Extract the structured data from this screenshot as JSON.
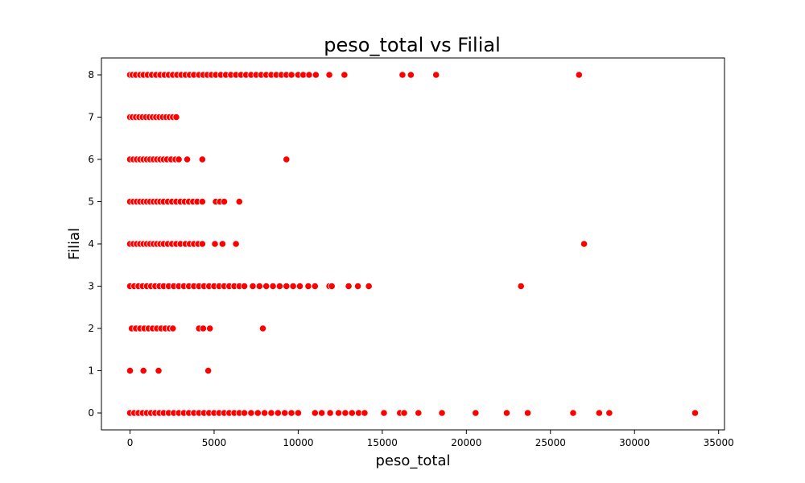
{
  "chart_data": {
    "type": "scatter",
    "title": "peso_total vs Filial",
    "xlabel": "peso_total",
    "ylabel": "Filial",
    "xlim": [
      -1700,
      35350
    ],
    "ylim": [
      -0.4,
      8.4
    ],
    "xticks": [
      0,
      5000,
      10000,
      15000,
      20000,
      25000,
      30000,
      35000
    ],
    "yticks": [
      0,
      1,
      2,
      3,
      4,
      5,
      6,
      7,
      8
    ],
    "grid": false,
    "legend": "none",
    "marker_color": "#ff0000",
    "marker_edge_color": "#ffffff",
    "points": [
      {
        "x": 0,
        "y": 8
      },
      {
        "x": 150,
        "y": 8
      },
      {
        "x": 350,
        "y": 8
      },
      {
        "x": 600,
        "y": 8
      },
      {
        "x": 800,
        "y": 8
      },
      {
        "x": 1050,
        "y": 8
      },
      {
        "x": 1300,
        "y": 8
      },
      {
        "x": 1550,
        "y": 8
      },
      {
        "x": 1800,
        "y": 8
      },
      {
        "x": 2050,
        "y": 8
      },
      {
        "x": 2300,
        "y": 8
      },
      {
        "x": 2550,
        "y": 8
      },
      {
        "x": 2800,
        "y": 8
      },
      {
        "x": 3050,
        "y": 8
      },
      {
        "x": 3300,
        "y": 8
      },
      {
        "x": 3550,
        "y": 8
      },
      {
        "x": 3800,
        "y": 8
      },
      {
        "x": 4100,
        "y": 8
      },
      {
        "x": 4350,
        "y": 8
      },
      {
        "x": 4600,
        "y": 8
      },
      {
        "x": 4850,
        "y": 8
      },
      {
        "x": 5100,
        "y": 8
      },
      {
        "x": 5400,
        "y": 8
      },
      {
        "x": 5700,
        "y": 8
      },
      {
        "x": 6000,
        "y": 8
      },
      {
        "x": 6300,
        "y": 8
      },
      {
        "x": 6600,
        "y": 8
      },
      {
        "x": 6900,
        "y": 8
      },
      {
        "x": 7200,
        "y": 8
      },
      {
        "x": 7500,
        "y": 8
      },
      {
        "x": 7800,
        "y": 8
      },
      {
        "x": 8100,
        "y": 8
      },
      {
        "x": 8400,
        "y": 8
      },
      {
        "x": 8700,
        "y": 8
      },
      {
        "x": 9000,
        "y": 8
      },
      {
        "x": 9300,
        "y": 8
      },
      {
        "x": 9600,
        "y": 8
      },
      {
        "x": 10000,
        "y": 8
      },
      {
        "x": 10300,
        "y": 8
      },
      {
        "x": 10650,
        "y": 8
      },
      {
        "x": 11050,
        "y": 8
      },
      {
        "x": 11850,
        "y": 8
      },
      {
        "x": 12750,
        "y": 8
      },
      {
        "x": 16200,
        "y": 8
      },
      {
        "x": 16700,
        "y": 8
      },
      {
        "x": 18200,
        "y": 8
      },
      {
        "x": 26700,
        "y": 8
      },
      {
        "x": 0,
        "y": 7
      },
      {
        "x": 150,
        "y": 7
      },
      {
        "x": 350,
        "y": 7
      },
      {
        "x": 550,
        "y": 7
      },
      {
        "x": 750,
        "y": 7
      },
      {
        "x": 950,
        "y": 7
      },
      {
        "x": 1150,
        "y": 7
      },
      {
        "x": 1350,
        "y": 7
      },
      {
        "x": 1550,
        "y": 7
      },
      {
        "x": 1750,
        "y": 7
      },
      {
        "x": 1950,
        "y": 7
      },
      {
        "x": 2150,
        "y": 7
      },
      {
        "x": 2350,
        "y": 7
      },
      {
        "x": 2550,
        "y": 7
      },
      {
        "x": 2750,
        "y": 7
      },
      {
        "x": 0,
        "y": 6
      },
      {
        "x": 200,
        "y": 6
      },
      {
        "x": 400,
        "y": 6
      },
      {
        "x": 600,
        "y": 6
      },
      {
        "x": 800,
        "y": 6
      },
      {
        "x": 1000,
        "y": 6
      },
      {
        "x": 1200,
        "y": 6
      },
      {
        "x": 1400,
        "y": 6
      },
      {
        "x": 1600,
        "y": 6
      },
      {
        "x": 1800,
        "y": 6
      },
      {
        "x": 2000,
        "y": 6
      },
      {
        "x": 2200,
        "y": 6
      },
      {
        "x": 2450,
        "y": 6
      },
      {
        "x": 2700,
        "y": 6
      },
      {
        "x": 2900,
        "y": 6
      },
      {
        "x": 3400,
        "y": 6
      },
      {
        "x": 4300,
        "y": 6
      },
      {
        "x": 9300,
        "y": 6
      },
      {
        "x": 0,
        "y": 5
      },
      {
        "x": 200,
        "y": 5
      },
      {
        "x": 400,
        "y": 5
      },
      {
        "x": 600,
        "y": 5
      },
      {
        "x": 800,
        "y": 5
      },
      {
        "x": 1000,
        "y": 5
      },
      {
        "x": 1200,
        "y": 5
      },
      {
        "x": 1400,
        "y": 5
      },
      {
        "x": 1600,
        "y": 5
      },
      {
        "x": 1800,
        "y": 5
      },
      {
        "x": 2000,
        "y": 5
      },
      {
        "x": 2250,
        "y": 5
      },
      {
        "x": 2500,
        "y": 5
      },
      {
        "x": 2750,
        "y": 5
      },
      {
        "x": 3000,
        "y": 5
      },
      {
        "x": 3250,
        "y": 5
      },
      {
        "x": 3500,
        "y": 5
      },
      {
        "x": 3750,
        "y": 5
      },
      {
        "x": 4000,
        "y": 5
      },
      {
        "x": 4300,
        "y": 5
      },
      {
        "x": 5100,
        "y": 5
      },
      {
        "x": 5350,
        "y": 5
      },
      {
        "x": 5600,
        "y": 5
      },
      {
        "x": 6500,
        "y": 5
      },
      {
        "x": 0,
        "y": 4
      },
      {
        "x": 200,
        "y": 4
      },
      {
        "x": 400,
        "y": 4
      },
      {
        "x": 600,
        "y": 4
      },
      {
        "x": 800,
        "y": 4
      },
      {
        "x": 1000,
        "y": 4
      },
      {
        "x": 1200,
        "y": 4
      },
      {
        "x": 1400,
        "y": 4
      },
      {
        "x": 1600,
        "y": 4
      },
      {
        "x": 1800,
        "y": 4
      },
      {
        "x": 2000,
        "y": 4
      },
      {
        "x": 2250,
        "y": 4
      },
      {
        "x": 2500,
        "y": 4
      },
      {
        "x": 2750,
        "y": 4
      },
      {
        "x": 3000,
        "y": 4
      },
      {
        "x": 3300,
        "y": 4
      },
      {
        "x": 3550,
        "y": 4
      },
      {
        "x": 3800,
        "y": 4
      },
      {
        "x": 4050,
        "y": 4
      },
      {
        "x": 4300,
        "y": 4
      },
      {
        "x": 5050,
        "y": 4
      },
      {
        "x": 5500,
        "y": 4
      },
      {
        "x": 6300,
        "y": 4
      },
      {
        "x": 27000,
        "y": 4
      },
      {
        "x": 0,
        "y": 3
      },
      {
        "x": 250,
        "y": 3
      },
      {
        "x": 500,
        "y": 3
      },
      {
        "x": 750,
        "y": 3
      },
      {
        "x": 1000,
        "y": 3
      },
      {
        "x": 1250,
        "y": 3
      },
      {
        "x": 1500,
        "y": 3
      },
      {
        "x": 1750,
        "y": 3
      },
      {
        "x": 2000,
        "y": 3
      },
      {
        "x": 2300,
        "y": 3
      },
      {
        "x": 2600,
        "y": 3
      },
      {
        "x": 2900,
        "y": 3
      },
      {
        "x": 3200,
        "y": 3
      },
      {
        "x": 3500,
        "y": 3
      },
      {
        "x": 3800,
        "y": 3
      },
      {
        "x": 4100,
        "y": 3
      },
      {
        "x": 4400,
        "y": 3
      },
      {
        "x": 4700,
        "y": 3
      },
      {
        "x": 5000,
        "y": 3
      },
      {
        "x": 5300,
        "y": 3
      },
      {
        "x": 5600,
        "y": 3
      },
      {
        "x": 5900,
        "y": 3
      },
      {
        "x": 6200,
        "y": 3
      },
      {
        "x": 6500,
        "y": 3
      },
      {
        "x": 6800,
        "y": 3
      },
      {
        "x": 7300,
        "y": 3
      },
      {
        "x": 7700,
        "y": 3
      },
      {
        "x": 8100,
        "y": 3
      },
      {
        "x": 8500,
        "y": 3
      },
      {
        "x": 8900,
        "y": 3
      },
      {
        "x": 9300,
        "y": 3
      },
      {
        "x": 9700,
        "y": 3
      },
      {
        "x": 10100,
        "y": 3
      },
      {
        "x": 10600,
        "y": 3
      },
      {
        "x": 11000,
        "y": 3
      },
      {
        "x": 11850,
        "y": 3
      },
      {
        "x": 12000,
        "y": 3
      },
      {
        "x": 13000,
        "y": 3
      },
      {
        "x": 13550,
        "y": 3
      },
      {
        "x": 14200,
        "y": 3
      },
      {
        "x": 23250,
        "y": 3
      },
      {
        "x": 100,
        "y": 2
      },
      {
        "x": 350,
        "y": 2
      },
      {
        "x": 600,
        "y": 2
      },
      {
        "x": 850,
        "y": 2
      },
      {
        "x": 1100,
        "y": 2
      },
      {
        "x": 1350,
        "y": 2
      },
      {
        "x": 1600,
        "y": 2
      },
      {
        "x": 1850,
        "y": 2
      },
      {
        "x": 2100,
        "y": 2
      },
      {
        "x": 2350,
        "y": 2
      },
      {
        "x": 2550,
        "y": 2
      },
      {
        "x": 4100,
        "y": 2
      },
      {
        "x": 4350,
        "y": 2
      },
      {
        "x": 4750,
        "y": 2
      },
      {
        "x": 7900,
        "y": 2
      },
      {
        "x": 0,
        "y": 1
      },
      {
        "x": 800,
        "y": 1
      },
      {
        "x": 1700,
        "y": 1
      },
      {
        "x": 4650,
        "y": 1
      },
      {
        "x": 0,
        "y": 0
      },
      {
        "x": 250,
        "y": 0
      },
      {
        "x": 500,
        "y": 0
      },
      {
        "x": 750,
        "y": 0
      },
      {
        "x": 1000,
        "y": 0
      },
      {
        "x": 1250,
        "y": 0
      },
      {
        "x": 1500,
        "y": 0
      },
      {
        "x": 1750,
        "y": 0
      },
      {
        "x": 2000,
        "y": 0
      },
      {
        "x": 2300,
        "y": 0
      },
      {
        "x": 2600,
        "y": 0
      },
      {
        "x": 2900,
        "y": 0
      },
      {
        "x": 3200,
        "y": 0
      },
      {
        "x": 3500,
        "y": 0
      },
      {
        "x": 3800,
        "y": 0
      },
      {
        "x": 4100,
        "y": 0
      },
      {
        "x": 4400,
        "y": 0
      },
      {
        "x": 4700,
        "y": 0
      },
      {
        "x": 5000,
        "y": 0
      },
      {
        "x": 5300,
        "y": 0
      },
      {
        "x": 5600,
        "y": 0
      },
      {
        "x": 5900,
        "y": 0
      },
      {
        "x": 6200,
        "y": 0
      },
      {
        "x": 6500,
        "y": 0
      },
      {
        "x": 6800,
        "y": 0
      },
      {
        "x": 7200,
        "y": 0
      },
      {
        "x": 7600,
        "y": 0
      },
      {
        "x": 8000,
        "y": 0
      },
      {
        "x": 8400,
        "y": 0
      },
      {
        "x": 8800,
        "y": 0
      },
      {
        "x": 9200,
        "y": 0
      },
      {
        "x": 9600,
        "y": 0
      },
      {
        "x": 10000,
        "y": 0
      },
      {
        "x": 11000,
        "y": 0
      },
      {
        "x": 11400,
        "y": 0
      },
      {
        "x": 11900,
        "y": 0
      },
      {
        "x": 12400,
        "y": 0
      },
      {
        "x": 12800,
        "y": 0
      },
      {
        "x": 13200,
        "y": 0
      },
      {
        "x": 13600,
        "y": 0
      },
      {
        "x": 13950,
        "y": 0
      },
      {
        "x": 15100,
        "y": 0
      },
      {
        "x": 16050,
        "y": 0
      },
      {
        "x": 16300,
        "y": 0
      },
      {
        "x": 17150,
        "y": 0
      },
      {
        "x": 18550,
        "y": 0
      },
      {
        "x": 20550,
        "y": 0
      },
      {
        "x": 22400,
        "y": 0
      },
      {
        "x": 23650,
        "y": 0
      },
      {
        "x": 26350,
        "y": 0
      },
      {
        "x": 27900,
        "y": 0
      },
      {
        "x": 28500,
        "y": 0
      },
      {
        "x": 33600,
        "y": 0
      }
    ]
  }
}
